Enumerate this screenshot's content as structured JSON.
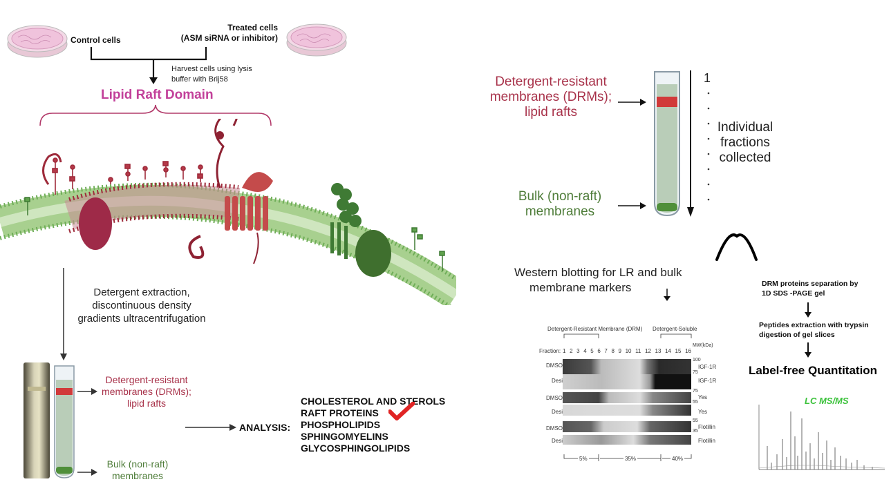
{
  "left": {
    "control_label": "Control cells",
    "treated_label_line1": "Treated  cells",
    "treated_label_line2": "(ASM siRNA or inhibitor)",
    "harvest_line1": "Harvest cells using lysis",
    "harvest_line2": "buffer with Brij58",
    "raft_title": "Lipid Raft Domain",
    "extraction_line1": "Detergent extraction,",
    "extraction_line2": "discontinuous density",
    "extraction_line3": "gradients ultracentrifugation",
    "drm_line1": "Detergent-resistant",
    "drm_line2": "membranes (DRMs);",
    "drm_line3": "lipid rafts",
    "bulk_line1": "Bulk (non-raft)",
    "bulk_line2": "membranes",
    "analysis_label": "ANALYSIS:",
    "analysis_items": [
      "CHOLESTEROL AND STEROLS",
      "RAFT PROTEINS",
      "PHOSPHOLIPIDS",
      "SPHINGOMYELINS",
      "GLYCOSPHINGOLIPIDS"
    ]
  },
  "right": {
    "drm_line1": "Detergent-resistant",
    "drm_line2": "membranes (DRMs);",
    "drm_line3": "lipid rafts",
    "bulk_line1": "Bulk (non-raft)",
    "bulk_line2": "membranes",
    "fraction_top": "1",
    "fractions_line1": "Individual",
    "fractions_line2": "fractions",
    "fractions_line3": "collected",
    "western_line1": "Western blotting for LR and bulk",
    "western_line2": "membrane markers",
    "ms_step1_line1": "DRM proteins separation by",
    "ms_step1_line2": "1D SDS -PAGE gel",
    "ms_step2_line1": "Peptides extraction with trypsin",
    "ms_step2_line2": "digestion of gel slices",
    "label_free": "Label-free Quantitation",
    "lcms": "LC MS/MS"
  },
  "blot": {
    "drm_header": "Detergent-Resistant Membrane (DRM)",
    "soluble_header": "Detergent-Soluble",
    "fraction_label": "Fraction:",
    "fractions": [
      "1",
      "2",
      "3",
      "4",
      "5",
      "6",
      "7",
      "8",
      "9",
      "10",
      "11",
      "12",
      "13",
      "14",
      "15",
      "16"
    ],
    "mw_label": "MW(kDa)",
    "rows": [
      {
        "treatment": "DMSO",
        "marker": "IGF-1R"
      },
      {
        "treatment": "Desi",
        "marker": "IGF-1R"
      },
      {
        "treatment": "DMSO",
        "marker": "Yes"
      },
      {
        "treatment": "Desi",
        "marker": "Yes"
      },
      {
        "treatment": "DMSO",
        "marker": "Flotillin"
      },
      {
        "treatment": "Desi",
        "marker": "Flotillin"
      }
    ],
    "mw_marks": [
      "100",
      "75",
      "75",
      "55",
      "55",
      "35"
    ],
    "percents": [
      "5%",
      "35%",
      "40%"
    ]
  },
  "colors": {
    "raft_title": "#c2409a",
    "drm_text": "#a8324a",
    "bulk_text": "#4f7d3a",
    "raft_red": "#c0392b",
    "lcms_green": "#3cc23c",
    "membrane_green": "#7cb86a"
  }
}
